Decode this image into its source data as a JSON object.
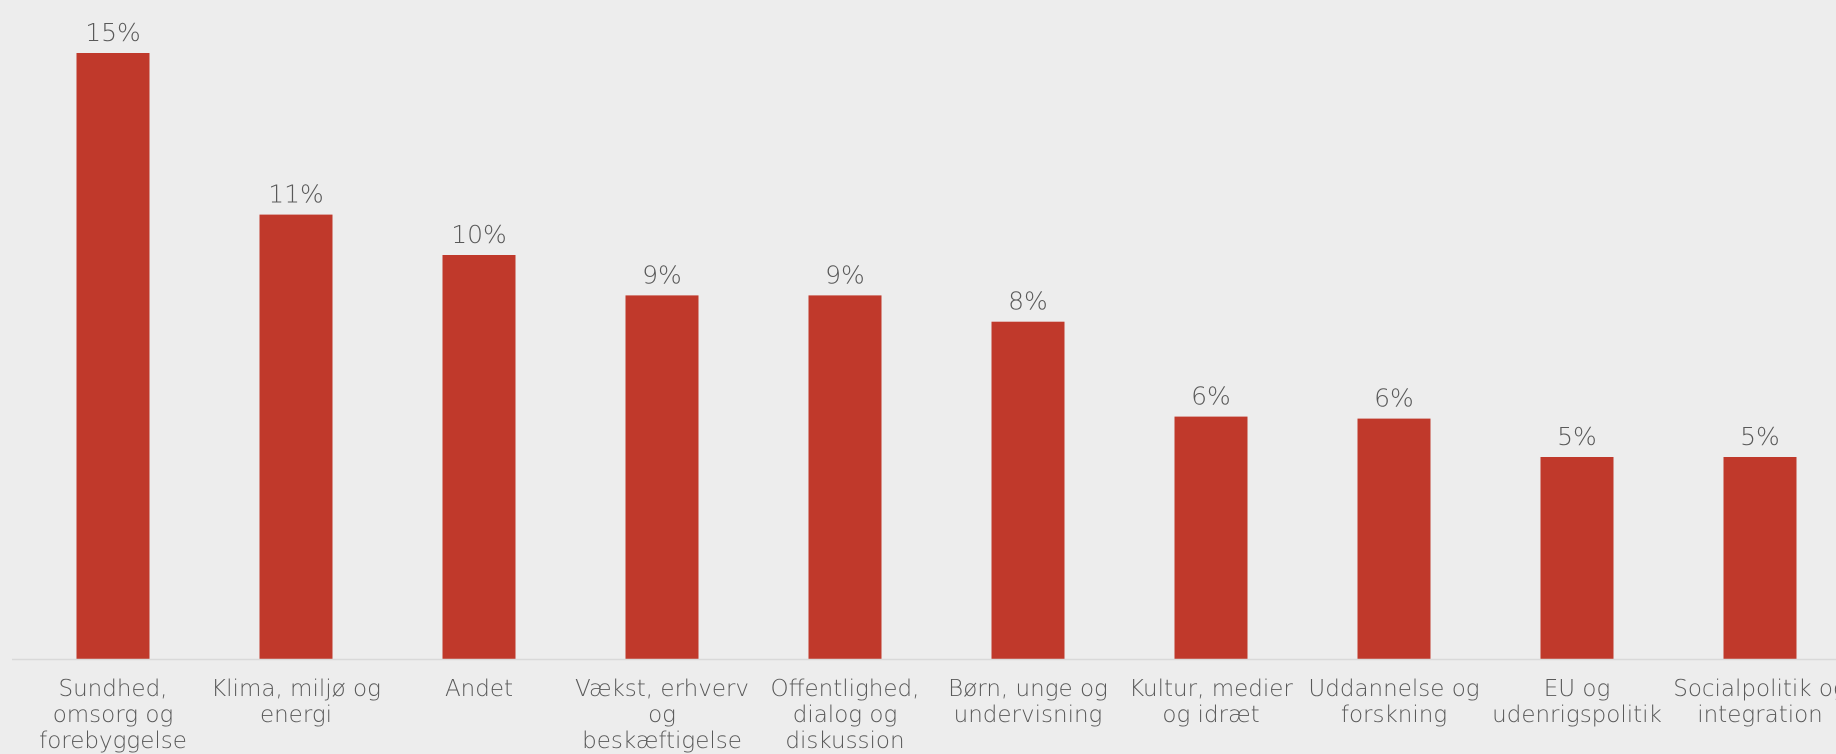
{
  "chart_data": {
    "type": "bar",
    "title": "",
    "xlabel": "",
    "ylabel": "",
    "ylim": [
      0,
      15
    ],
    "grid": false,
    "legend": "none",
    "categories": [
      "Sundhed, omsorg og forebyggelse",
      "Klima, miljø og energi",
      "Andet",
      "Vækst, erhverv og beskæftigelse",
      "Offentlighed, dialog og diskussion",
      "Børn, unge og undervisning",
      "Kultur, medier og idræt",
      "Uddannelse og forskning",
      "EU og udenrigspolitik",
      "Socialpolitik og integration"
    ],
    "category_lines": [
      [
        "Sundhed,",
        "omsorg og",
        "forebyggelse"
      ],
      [
        "Klima, miljø og",
        "energi"
      ],
      [
        "Andet"
      ],
      [
        "Vækst, erhverv",
        "og",
        "beskæftigelse"
      ],
      [
        "Offentlighed,",
        "dialog og",
        "diskussion"
      ],
      [
        "Børn, unge og",
        "undervisning"
      ],
      [
        "Kultur, medier",
        "og idræt"
      ],
      [
        "Uddannelse og",
        "forskning"
      ],
      [
        "EU og",
        "udenrigspolitik"
      ],
      [
        "Socialpolitik og",
        "integration"
      ]
    ],
    "values": [
      15,
      11,
      10,
      9,
      9,
      8.35,
      6,
      5.95,
      5,
      5
    ],
    "data_labels": [
      "15%",
      "11%",
      "10%",
      "9%",
      "9%",
      "8%",
      "6%",
      "6%",
      "5%",
      "5%"
    ],
    "colors": {
      "bar": "#c0392b",
      "axis": "#d9d9d9",
      "text": "#595959",
      "background": "#ededed"
    }
  }
}
